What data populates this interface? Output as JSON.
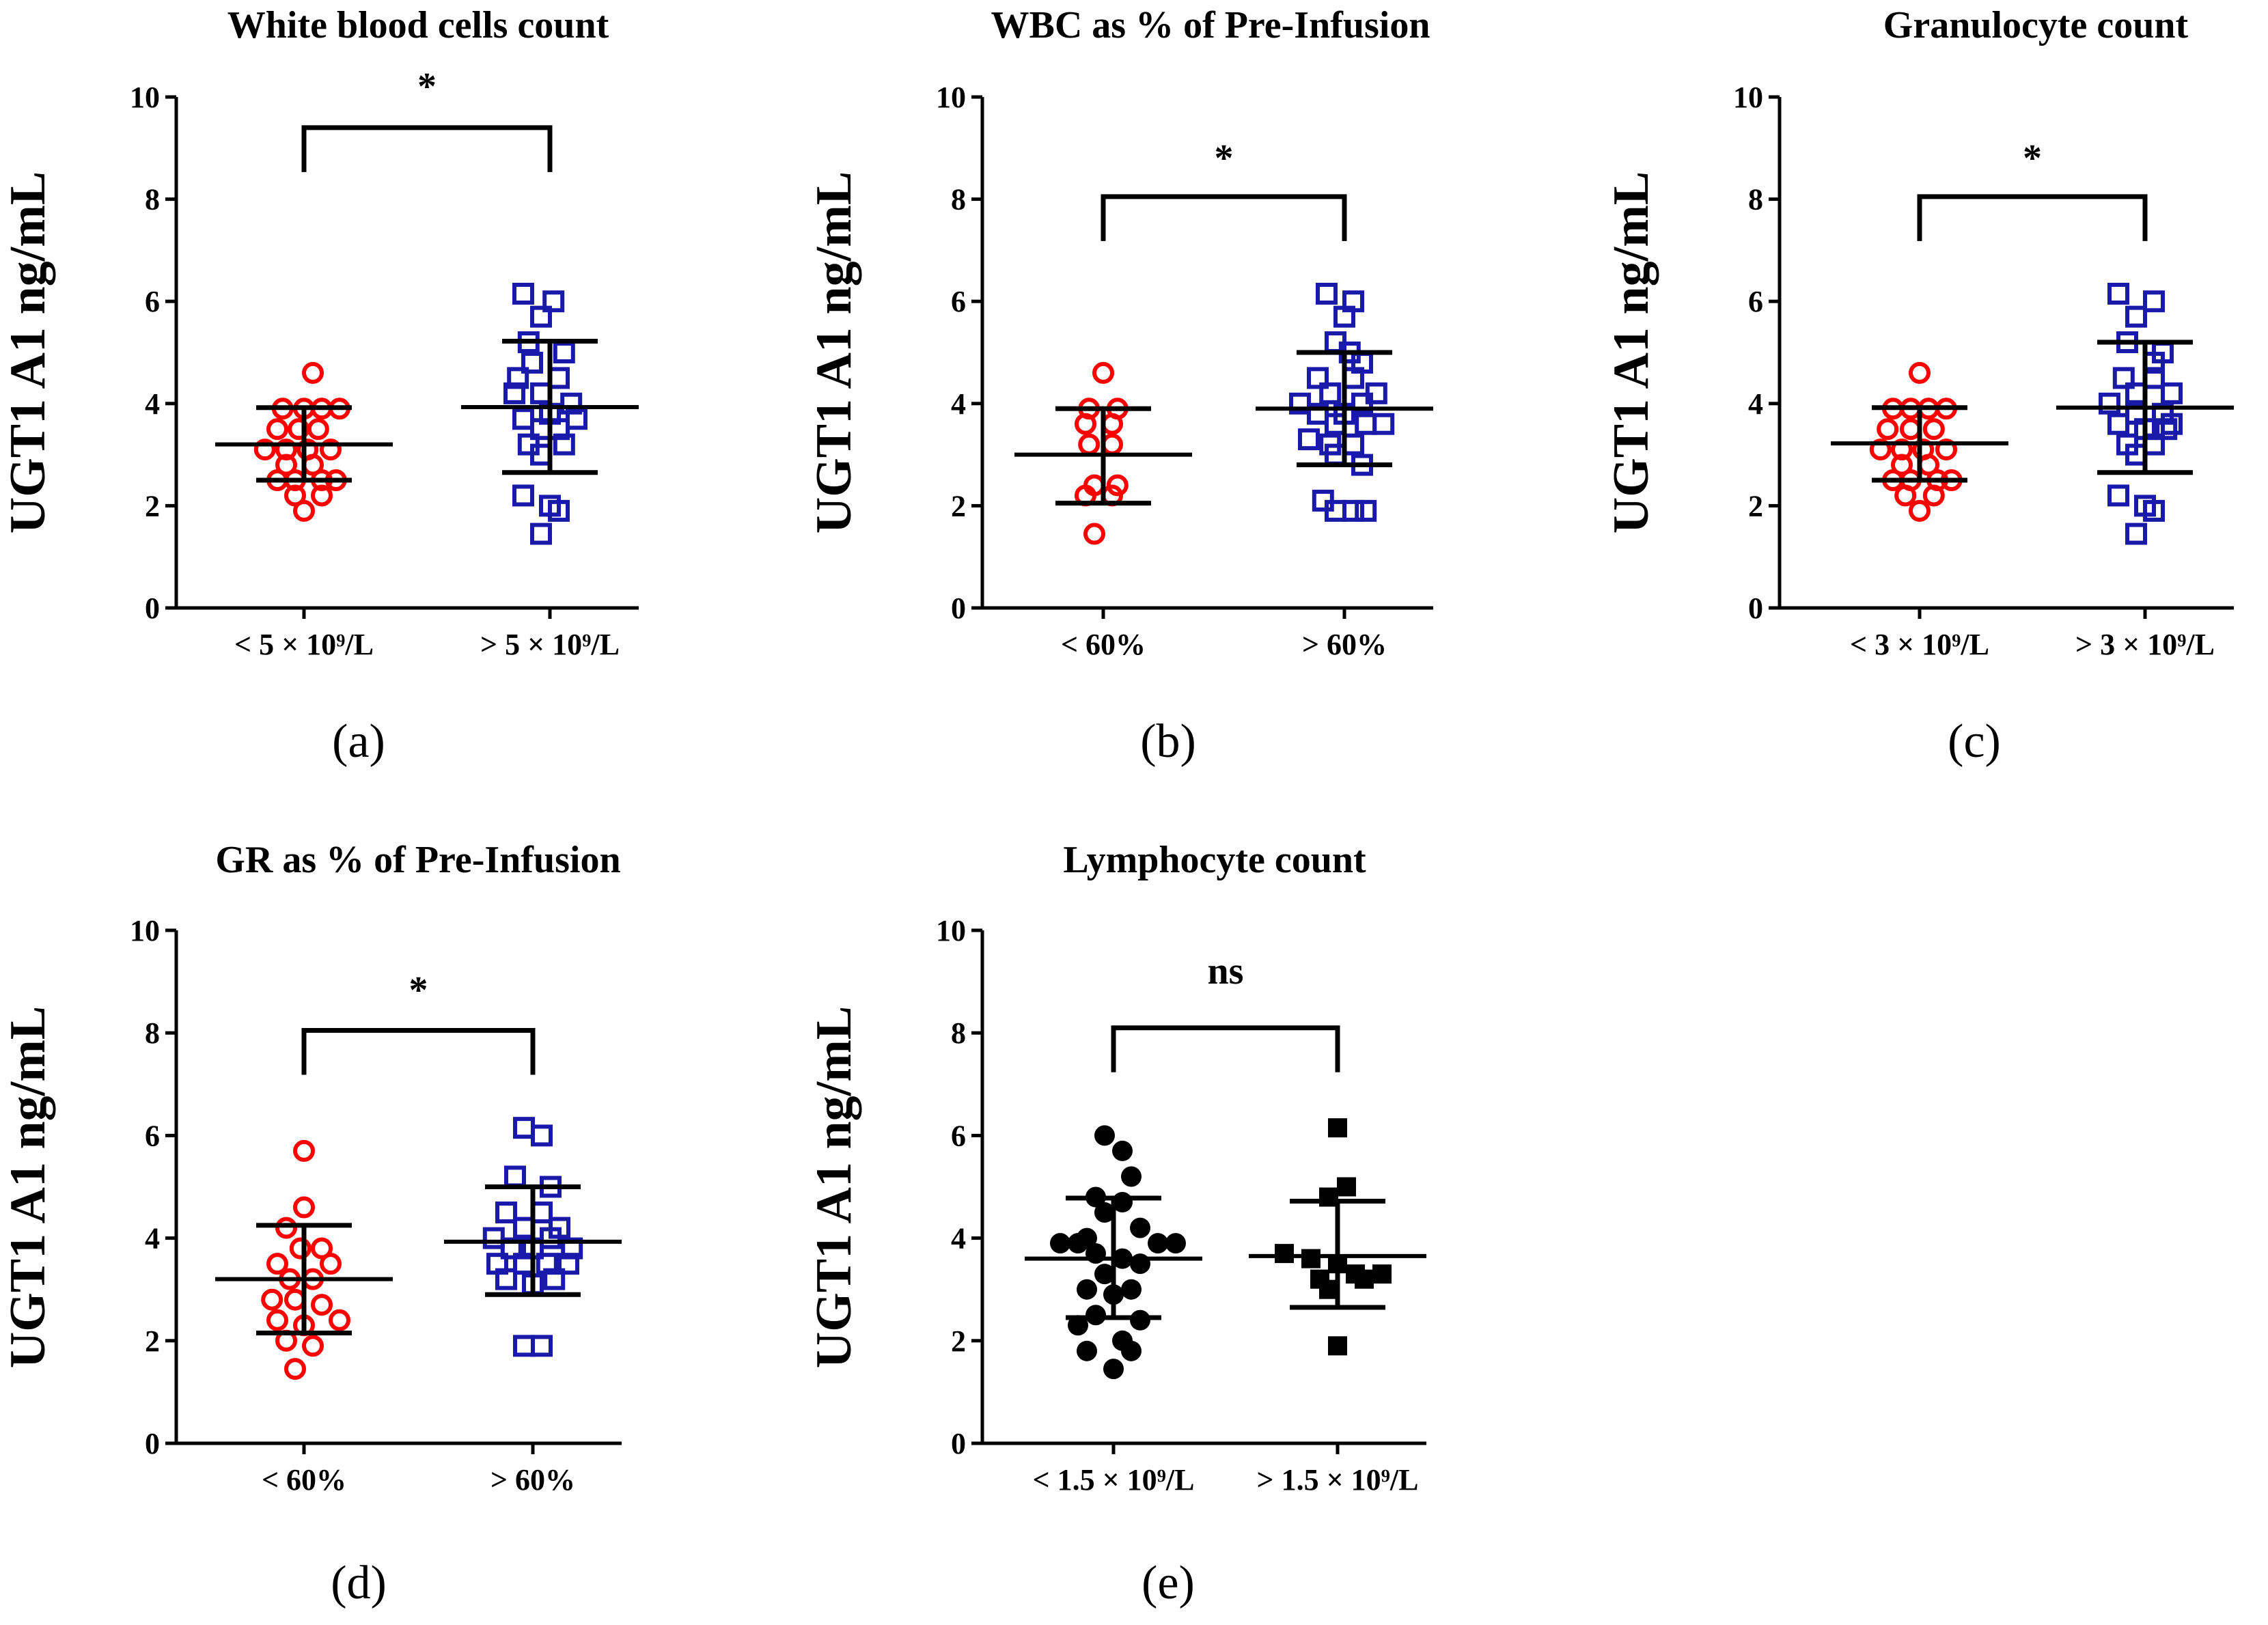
{
  "figure": {
    "description_text": ""
  },
  "chart_data": [
    {
      "type": "scatter",
      "panel_label": "(a)",
      "title": "White blood cells count",
      "ylabel": "UGT1 A1 ng/mL",
      "ylim": [
        0,
        10
      ],
      "yticks": [
        "0",
        "2",
        "4",
        "6",
        "8",
        "10"
      ],
      "categories": [
        {
          "label": "< 5 × 10⁹/L",
          "marker": "circle-open",
          "color": "#ff0000",
          "mean": 3.2,
          "sd_low": 2.5,
          "sd_high": 3.92,
          "points": [
            [
              0.05,
              4.6
            ],
            [
              -0.12,
              3.9
            ],
            [
              0.0,
              3.9
            ],
            [
              0.1,
              3.9
            ],
            [
              0.2,
              3.9
            ],
            [
              -0.15,
              3.5
            ],
            [
              -0.03,
              3.5
            ],
            [
              0.08,
              3.5
            ],
            [
              -0.22,
              3.1
            ],
            [
              -0.1,
              3.1
            ],
            [
              0.02,
              3.1
            ],
            [
              0.15,
              3.1
            ],
            [
              -0.1,
              2.8
            ],
            [
              0.05,
              2.8
            ],
            [
              -0.15,
              2.5
            ],
            [
              -0.05,
              2.5
            ],
            [
              0.1,
              2.5
            ],
            [
              0.18,
              2.5
            ],
            [
              -0.05,
              2.2
            ],
            [
              0.1,
              2.2
            ],
            [
              0.0,
              1.9
            ]
          ]
        },
        {
          "label": "> 5 × 10⁹/L",
          "marker": "square-open",
          "color": "#1a1aaa",
          "mean": 3.93,
          "sd_low": 2.65,
          "sd_high": 5.22,
          "points": [
            [
              -0.15,
              6.15
            ],
            [
              0.02,
              6.0
            ],
            [
              -0.05,
              5.7
            ],
            [
              -0.12,
              5.2
            ],
            [
              0.08,
              5.0
            ],
            [
              -0.1,
              4.8
            ],
            [
              -0.18,
              4.5
            ],
            [
              0.05,
              4.5
            ],
            [
              -0.05,
              4.2
            ],
            [
              -0.2,
              4.2
            ],
            [
              0.12,
              4.0
            ],
            [
              0.0,
              3.8
            ],
            [
              -0.15,
              3.7
            ],
            [
              0.15,
              3.7
            ],
            [
              -0.05,
              3.5
            ],
            [
              0.05,
              3.5
            ],
            [
              -0.12,
              3.2
            ],
            [
              0.08,
              3.2
            ],
            [
              -0.05,
              3.0
            ],
            [
              -0.15,
              2.2
            ],
            [
              0.0,
              2.0
            ],
            [
              0.05,
              1.9
            ],
            [
              -0.05,
              1.45
            ]
          ]
        }
      ],
      "significance": {
        "label": "*",
        "bar_y": 9.4
      }
    },
    {
      "type": "scatter",
      "panel_label": "(b)",
      "title": "WBC as % of Pre-Infusion",
      "ylabel": "UGT1 A1 ng/mL",
      "ylim": [
        0,
        10
      ],
      "yticks": [
        "0",
        "2",
        "4",
        "6",
        "8",
        "10"
      ],
      "categories": [
        {
          "label": "< 60%",
          "marker": "circle-open",
          "color": "#ff0000",
          "mean": 3.0,
          "sd_low": 2.05,
          "sd_high": 3.9,
          "points": [
            [
              0.0,
              4.6
            ],
            [
              -0.08,
              3.9
            ],
            [
              0.08,
              3.9
            ],
            [
              -0.1,
              3.6
            ],
            [
              0.05,
              3.6
            ],
            [
              -0.08,
              3.2
            ],
            [
              0.05,
              3.2
            ],
            [
              -0.05,
              2.4
            ],
            [
              0.08,
              2.4
            ],
            [
              -0.1,
              2.2
            ],
            [
              0.05,
              2.2
            ],
            [
              -0.05,
              1.45
            ]
          ]
        },
        {
          "label": "> 60%",
          "marker": "square-open",
          "color": "#1a1aaa",
          "mean": 3.9,
          "sd_low": 2.8,
          "sd_high": 5.0,
          "points": [
            [
              -0.1,
              6.15
            ],
            [
              0.05,
              6.0
            ],
            [
              0.0,
              5.7
            ],
            [
              -0.05,
              5.2
            ],
            [
              0.03,
              5.0
            ],
            [
              0.1,
              4.8
            ],
            [
              -0.15,
              4.5
            ],
            [
              0.05,
              4.5
            ],
            [
              -0.08,
              4.2
            ],
            [
              0.18,
              4.2
            ],
            [
              -0.25,
              4.0
            ],
            [
              0.1,
              4.0
            ],
            [
              -0.15,
              3.8
            ],
            [
              0.0,
              3.8
            ],
            [
              -0.05,
              3.6
            ],
            [
              0.12,
              3.6
            ],
            [
              0.22,
              3.6
            ],
            [
              -0.2,
              3.3
            ],
            [
              -0.08,
              3.2
            ],
            [
              0.05,
              3.2
            ],
            [
              -0.05,
              3.0
            ],
            [
              0.1,
              2.8
            ],
            [
              -0.12,
              2.1
            ],
            [
              -0.05,
              1.9
            ],
            [
              0.05,
              1.9
            ],
            [
              0.12,
              1.9
            ]
          ]
        }
      ],
      "significance": {
        "label": "*",
        "bar_y": 8.05
      }
    },
    {
      "type": "scatter",
      "panel_label": "(c)",
      "title": "Granulocyte count",
      "ylabel": "UGT1 A1 ng/mL",
      "ylim": [
        0,
        10
      ],
      "yticks": [
        "0",
        "2",
        "4",
        "6",
        "8",
        "10"
      ],
      "categories": [
        {
          "label": "< 3 × 10⁹/L",
          "marker": "circle-open",
          "color": "#ff0000",
          "mean": 3.22,
          "sd_low": 2.5,
          "sd_high": 3.92,
          "points": [
            [
              0.0,
              4.6
            ],
            [
              -0.15,
              3.9
            ],
            [
              -0.05,
              3.9
            ],
            [
              0.05,
              3.9
            ],
            [
              0.15,
              3.9
            ],
            [
              -0.18,
              3.5
            ],
            [
              -0.05,
              3.5
            ],
            [
              0.08,
              3.5
            ],
            [
              -0.22,
              3.1
            ],
            [
              -0.1,
              3.1
            ],
            [
              0.02,
              3.1
            ],
            [
              0.15,
              3.1
            ],
            [
              -0.1,
              2.8
            ],
            [
              0.05,
              2.8
            ],
            [
              -0.15,
              2.5
            ],
            [
              -0.05,
              2.5
            ],
            [
              0.1,
              2.5
            ],
            [
              0.18,
              2.5
            ],
            [
              -0.08,
              2.2
            ],
            [
              0.08,
              2.2
            ],
            [
              0.0,
              1.9
            ]
          ]
        },
        {
          "label": "> 3 × 10⁹/L",
          "marker": "square-open",
          "color": "#1a1aaa",
          "mean": 3.92,
          "sd_low": 2.65,
          "sd_high": 5.2,
          "points": [
            [
              -0.15,
              6.15
            ],
            [
              0.05,
              6.0
            ],
            [
              -0.05,
              5.7
            ],
            [
              -0.1,
              5.2
            ],
            [
              0.1,
              5.0
            ],
            [
              0.05,
              4.8
            ],
            [
              -0.12,
              4.5
            ],
            [
              0.05,
              4.5
            ],
            [
              -0.05,
              4.2
            ],
            [
              0.15,
              4.2
            ],
            [
              -0.2,
              4.0
            ],
            [
              0.1,
              3.8
            ],
            [
              -0.05,
              3.8
            ],
            [
              -0.15,
              3.6
            ],
            [
              0.15,
              3.6
            ],
            [
              0.0,
              3.5
            ],
            [
              0.12,
              3.5
            ],
            [
              -0.1,
              3.2
            ],
            [
              0.05,
              3.2
            ],
            [
              -0.05,
              3.0
            ],
            [
              -0.15,
              2.2
            ],
            [
              0.0,
              2.0
            ],
            [
              0.05,
              1.9
            ],
            [
              -0.05,
              1.45
            ]
          ]
        }
      ],
      "significance": {
        "label": "*",
        "bar_y": 8.05
      }
    },
    {
      "type": "scatter",
      "panel_label": "(d)",
      "title": "GR as % of Pre-Infusion",
      "ylabel": "UGT1 A1 ng/mL",
      "ylim": [
        0,
        10
      ],
      "yticks": [
        "0",
        "2",
        "4",
        "6",
        "8",
        "10"
      ],
      "categories": [
        {
          "label": "< 60%",
          "marker": "circle-open",
          "color": "#ff0000",
          "mean": 3.2,
          "sd_low": 2.15,
          "sd_high": 4.25,
          "points": [
            [
              0.0,
              5.7
            ],
            [
              0.0,
              4.6
            ],
            [
              -0.1,
              4.2
            ],
            [
              0.1,
              3.8
            ],
            [
              -0.02,
              3.8
            ],
            [
              -0.15,
              3.5
            ],
            [
              0.15,
              3.5
            ],
            [
              -0.08,
              3.2
            ],
            [
              0.05,
              3.2
            ],
            [
              -0.18,
              2.8
            ],
            [
              -0.05,
              2.8
            ],
            [
              0.1,
              2.7
            ],
            [
              -0.15,
              2.4
            ],
            [
              0.2,
              2.4
            ],
            [
              0.0,
              2.3
            ],
            [
              -0.1,
              2.0
            ],
            [
              0.05,
              1.9
            ],
            [
              -0.05,
              1.45
            ]
          ]
        },
        {
          "label": "> 60%",
          "marker": "square-open",
          "color": "#1a1aaa",
          "mean": 3.93,
          "sd_low": 2.9,
          "sd_high": 5.0,
          "points": [
            [
              -0.05,
              6.15
            ],
            [
              0.05,
              6.0
            ],
            [
              -0.1,
              5.2
            ],
            [
              0.1,
              5.0
            ],
            [
              -0.15,
              4.5
            ],
            [
              0.05,
              4.5
            ],
            [
              -0.05,
              4.2
            ],
            [
              0.15,
              4.2
            ],
            [
              -0.22,
              4.0
            ],
            [
              0.1,
              4.0
            ],
            [
              -0.12,
              3.8
            ],
            [
              0.0,
              3.8
            ],
            [
              0.22,
              3.8
            ],
            [
              -0.2,
              3.5
            ],
            [
              -0.05,
              3.5
            ],
            [
              0.08,
              3.5
            ],
            [
              0.2,
              3.5
            ],
            [
              -0.15,
              3.2
            ],
            [
              0.0,
              3.1
            ],
            [
              0.12,
              3.2
            ],
            [
              -0.05,
              1.9
            ],
            [
              0.05,
              1.9
            ]
          ]
        }
      ],
      "significance": {
        "label": "*",
        "bar_y": 8.05
      }
    },
    {
      "type": "scatter",
      "panel_label": "(e)",
      "title": "Lymphocyte count",
      "ylabel": "UGT1 A1 ng/mL",
      "ylim": [
        0,
        10
      ],
      "yticks": [
        "0",
        "2",
        "4",
        "6",
        "8",
        "10"
      ],
      "categories": [
        {
          "label": "< 1.5 × 10⁹/L",
          "marker": "circle-filled",
          "color": "#000000",
          "mean": 3.6,
          "sd_low": 2.45,
          "sd_high": 4.78,
          "points": [
            [
              -0.05,
              6.0
            ],
            [
              0.05,
              5.7
            ],
            [
              0.1,
              5.2
            ],
            [
              -0.1,
              4.8
            ],
            [
              0.05,
              4.7
            ],
            [
              -0.05,
              4.5
            ],
            [
              0.15,
              4.2
            ],
            [
              -0.15,
              4.0
            ],
            [
              -0.3,
              3.9
            ],
            [
              -0.2,
              3.9
            ],
            [
              0.25,
              3.9
            ],
            [
              0.35,
              3.9
            ],
            [
              -0.1,
              3.7
            ],
            [
              0.05,
              3.6
            ],
            [
              0.15,
              3.5
            ],
            [
              -0.05,
              3.3
            ],
            [
              -0.15,
              3.0
            ],
            [
              0.1,
              3.0
            ],
            [
              0.0,
              2.9
            ],
            [
              -0.1,
              2.5
            ],
            [
              0.15,
              2.4
            ],
            [
              -0.2,
              2.3
            ],
            [
              0.05,
              2.0
            ],
            [
              -0.15,
              1.8
            ],
            [
              0.1,
              1.8
            ],
            [
              0.0,
              1.45
            ]
          ]
        },
        {
          "label": "> 1.5 × 10⁹/L",
          "marker": "square-filled",
          "color": "#000000",
          "mean": 3.65,
          "sd_low": 2.65,
          "sd_high": 4.72,
          "points": [
            [
              0.0,
              6.15
            ],
            [
              0.05,
              5.0
            ],
            [
              -0.05,
              4.8
            ],
            [
              -0.3,
              3.7
            ],
            [
              -0.15,
              3.6
            ],
            [
              0.0,
              3.5
            ],
            [
              0.1,
              3.3
            ],
            [
              -0.1,
              3.2
            ],
            [
              0.15,
              3.2
            ],
            [
              0.25,
              3.3
            ],
            [
              -0.05,
              3.0
            ],
            [
              0.0,
              1.9
            ]
          ]
        }
      ],
      "significance": {
        "label": "ns",
        "bar_y": 8.1
      }
    }
  ]
}
